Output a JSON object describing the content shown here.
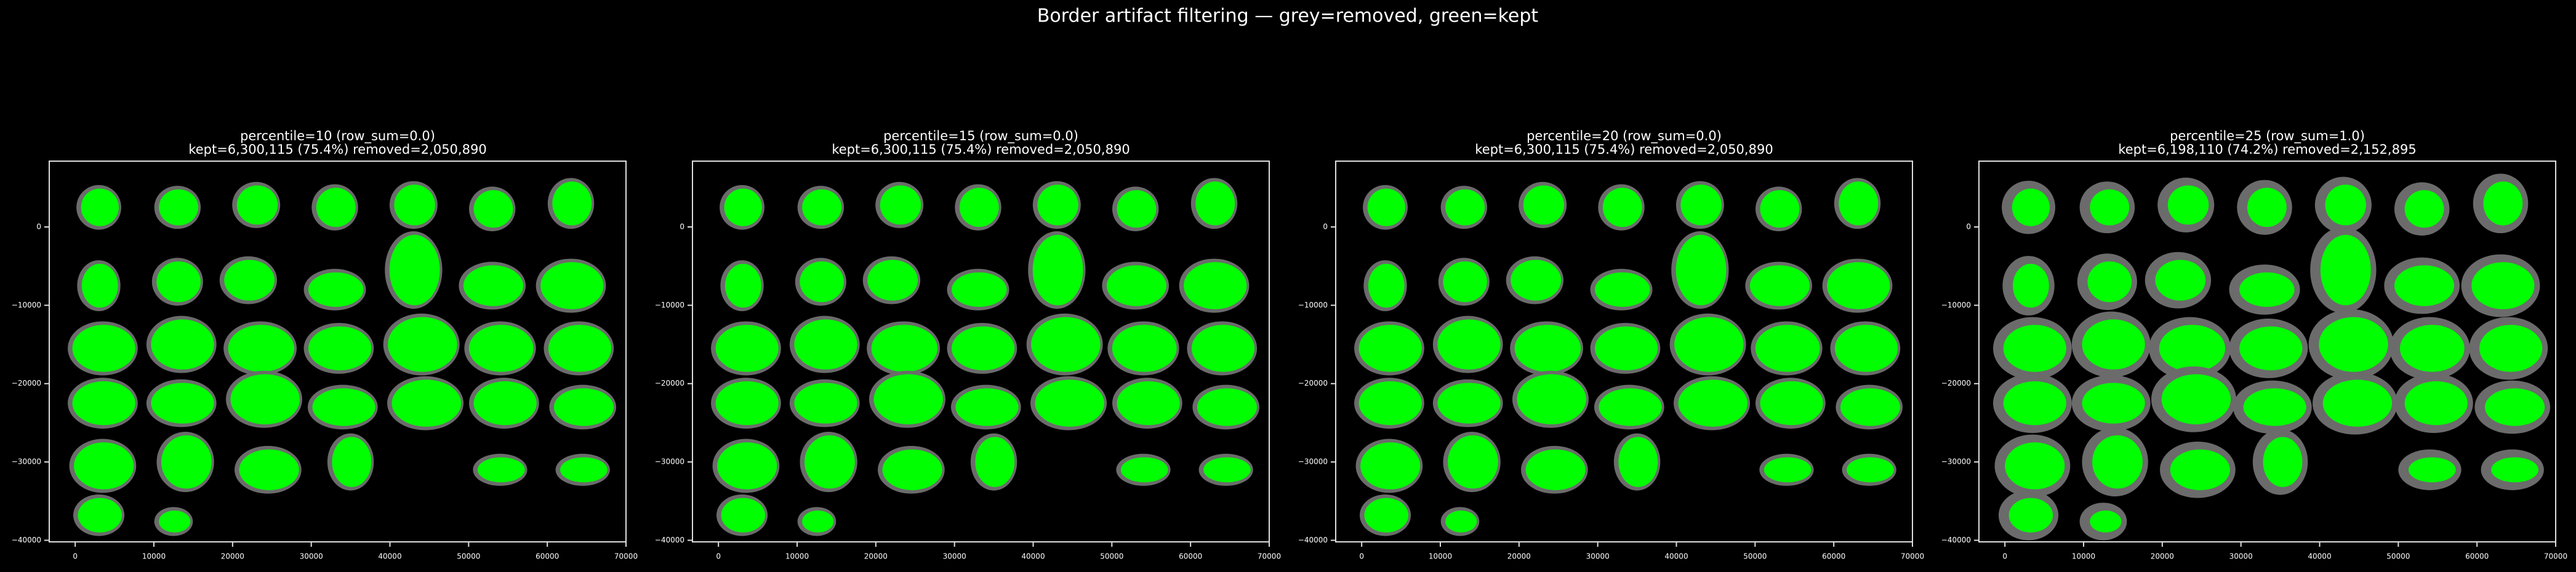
{
  "title": "Border artifact filtering — grey=removed, green=kept",
  "chart_data": [
    {
      "type": "scatter",
      "title": "percentile=10  (row_sum=0.0)",
      "subtitle": "kept=6,300,115 (75.4%)  removed=2,050,890",
      "xlim": [
        -3300,
        70000
      ],
      "ylim": [
        -40200,
        8400
      ],
      "xticks": [
        0,
        10000,
        20000,
        30000,
        40000,
        50000,
        60000,
        70000
      ],
      "yticks": [
        0,
        {
          "value": -10000,
          "label": "−10000"
        },
        {
          "value": -20000,
          "label": "−20000"
        },
        {
          "value": -30000,
          "label": "−30000"
        },
        {
          "value": -40000,
          "label": "−40000"
        }
      ]
    },
    {
      "type": "scatter",
      "title": "percentile=15  (row_sum=0.0)",
      "subtitle": "kept=6,300,115 (75.4%)  removed=2,050,890",
      "xlim": [
        -3300,
        70000
      ],
      "ylim": [
        -40200,
        8400
      ],
      "xticks": [
        0,
        10000,
        20000,
        30000,
        40000,
        50000,
        60000,
        70000
      ],
      "yticks": [
        0,
        {
          "value": -10000,
          "label": "−10000"
        },
        {
          "value": -20000,
          "label": "−20000"
        },
        {
          "value": -30000,
          "label": "−30000"
        },
        {
          "value": -40000,
          "label": "−40000"
        }
      ]
    },
    {
      "type": "scatter",
      "title": "percentile=20  (row_sum=0.0)",
      "subtitle": "kept=6,300,115 (75.4%)  removed=2,050,890",
      "xlim": [
        -3300,
        70000
      ],
      "ylim": [
        -40200,
        8400
      ],
      "xticks": [
        0,
        10000,
        20000,
        30000,
        40000,
        50000,
        60000,
        70000
      ],
      "yticks": [
        0,
        {
          "value": -10000,
          "label": "−10000"
        },
        {
          "value": -20000,
          "label": "−20000"
        },
        {
          "value": -30000,
          "label": "−30000"
        },
        {
          "value": -40000,
          "label": "−40000"
        }
      ]
    },
    {
      "type": "scatter",
      "title": "percentile=25  (row_sum=1.0)",
      "subtitle": "kept=6,198,110 (74.2%)  removed=2,152,895",
      "xlim": [
        -3300,
        70000
      ],
      "ylim": [
        -40200,
        8400
      ],
      "xticks": [
        0,
        10000,
        20000,
        30000,
        40000,
        50000,
        60000,
        70000
      ],
      "yticks": [
        0,
        {
          "value": -10000,
          "label": "−10000"
        },
        {
          "value": -20000,
          "label": "−20000"
        },
        {
          "value": -30000,
          "label": "−30000"
        },
        {
          "value": -40000,
          "label": "−40000"
        }
      ]
    }
  ]
}
